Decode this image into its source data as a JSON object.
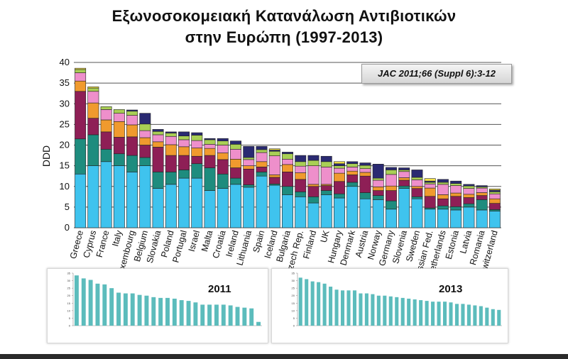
{
  "title_line1": "Εξωνοσοκομειακή Κατανάλωση Αντιβιοτικών",
  "title_line2": "στην Ευρώπη (1997-2013)",
  "reference_box": "JAC 2011;66 (Suppl 6):3-12",
  "colors": {
    "segments": [
      "#3fc3ee",
      "#1e8c7e",
      "#8e1f56",
      "#f09a2e",
      "#ee8fcb",
      "#a9cf55",
      "#2a2a72",
      "#f2e14a"
    ],
    "mini_bar": "#5cbcbc",
    "grid": "#555555"
  },
  "chart_data": [
    {
      "type": "bar",
      "stacked": true,
      "title": "",
      "xlabel": "",
      "ylabel": "DDD",
      "ylim": [
        0,
        40
      ],
      "yticks": [
        0,
        5,
        10,
        15,
        20,
        25,
        30,
        35,
        40
      ],
      "grid": true,
      "categories": [
        "Greece",
        "Cyprus",
        "France",
        "Italy",
        "Luxembourg",
        "Belgium",
        "Slovakia",
        "Poland",
        "Portugal",
        "Israel",
        "Malta",
        "Croatia",
        "Ireland",
        "Lithuania",
        "Spain",
        "Iceland",
        "Bulgaria",
        "Czech Rep.",
        "Finland",
        "UK",
        "Hungary",
        "Denmark",
        "Austria",
        "Norway",
        "Germany",
        "Slovenia",
        "Sweden",
        "Russian Fed.",
        "Netherlands",
        "Estonia",
        "Latvia",
        "Romania",
        "Switzerland"
      ],
      "segments": [
        [
          13.0,
          8.5,
          11.5,
          2.5,
          2.0,
          0.8,
          0,
          0.3
        ],
        [
          15.0,
          7.5,
          4.0,
          3.7,
          2.8,
          0.8,
          0,
          0.3
        ],
        [
          16.0,
          3.0,
          4.2,
          2.9,
          2.5,
          0.7,
          0,
          0
        ],
        [
          15.0,
          2.9,
          4.0,
          3.8,
          2.0,
          0.9,
          0,
          0
        ],
        [
          13.5,
          4.0,
          4.5,
          2.9,
          2.3,
          1.0,
          0.3,
          0
        ],
        [
          15.0,
          2.0,
          3.0,
          1.8,
          1.7,
          1.6,
          2.6,
          0
        ],
        [
          9.5,
          4.0,
          6.0,
          1.3,
          1.7,
          0.8,
          0.5,
          0
        ],
        [
          10.5,
          3.0,
          4.0,
          2.6,
          2.0,
          0.8,
          0.3,
          0
        ],
        [
          12.0,
          2.0,
          3.5,
          2.1,
          1.7,
          0.9,
          1.0,
          0
        ],
        [
          12.0,
          3.5,
          1.8,
          2.0,
          1.8,
          1.3,
          0.6,
          0
        ],
        [
          9.0,
          5.5,
          3.0,
          1.7,
          1.0,
          1.1,
          0.3,
          0
        ],
        [
          9.5,
          3.5,
          3.5,
          1.6,
          1.9,
          1.0,
          0.6,
          0
        ],
        [
          10.5,
          1.5,
          2.5,
          2.1,
          2.4,
          1.2,
          0.8,
          0
        ],
        [
          9.8,
          0.6,
          3.8,
          0.8,
          1.5,
          0.5,
          2.7,
          0
        ],
        [
          12.5,
          1.0,
          1.2,
          1.3,
          2.2,
          0.7,
          0.8,
          0
        ],
        [
          10.3,
          0.3,
          1.6,
          0.6,
          4.6,
          1.1,
          0.3,
          0.3
        ],
        [
          8.0,
          2.0,
          3.5,
          1.8,
          1.3,
          1.3,
          0.4,
          0
        ],
        [
          7.5,
          1.2,
          3.0,
          1.6,
          1.6,
          1.1,
          1.5,
          0
        ],
        [
          6.0,
          1.5,
          2.5,
          0.5,
          4.5,
          1.3,
          1.2,
          0
        ],
        [
          8.0,
          1.0,
          1.2,
          0.3,
          4.2,
          1.3,
          1.3,
          0
        ],
        [
          7.2,
          1.0,
          3.0,
          2.0,
          1.2,
          0.6,
          0.5,
          0.5
        ],
        [
          10.0,
          1.0,
          1.8,
          0.9,
          1.0,
          0.8,
          0.5,
          0
        ],
        [
          7.0,
          1.5,
          4.0,
          0.9,
          0.9,
          0.8,
          0.6,
          0
        ],
        [
          6.8,
          1.0,
          1.2,
          0.9,
          1.6,
          0.5,
          3.4,
          0
        ],
        [
          4.5,
          2.0,
          2.5,
          1.1,
          2.8,
          1.1,
          0.6,
          0
        ],
        [
          9.5,
          0.6,
          1.4,
          0.6,
          1.5,
          0.4,
          0.5,
          0
        ],
        [
          7.0,
          0.5,
          2.0,
          0.5,
          1.6,
          0.6,
          1.8,
          0
        ],
        [
          4.5,
          0.3,
          2.8,
          2.0,
          1.0,
          0.4,
          0.3,
          0.6
        ],
        [
          4.5,
          0.8,
          1.7,
          1.0,
          2.5,
          0.5,
          0.7,
          0
        ],
        [
          4.3,
          0.8,
          2.5,
          0.8,
          1.8,
          0.5,
          0.6,
          0
        ],
        [
          5.0,
          0.8,
          1.5,
          0.8,
          1.4,
          0.6,
          0.4,
          0
        ],
        [
          4.3,
          2.5,
          1.0,
          0.7,
          1.1,
          0.3,
          0.3,
          0
        ],
        [
          4.0,
          0.4,
          1.5,
          1.1,
          1.2,
          0.5,
          0.4,
          0.3
        ]
      ]
    },
    {
      "type": "bar",
      "title": "2011",
      "ylim": [
        0,
        35
      ],
      "values": [
        33.5,
        31.5,
        30.5,
        28,
        27.5,
        25,
        22,
        21.5,
        21.5,
        20.5,
        20,
        19,
        18.5,
        18.5,
        18,
        17,
        16.5,
        15.5,
        14,
        14,
        14,
        14,
        13.5,
        12.5,
        12,
        11.5,
        2.5
      ]
    },
    {
      "type": "bar",
      "title": "2013",
      "ylim": [
        0,
        35
      ],
      "values": [
        32,
        31,
        29.5,
        29,
        28,
        26,
        24,
        23.5,
        23.5,
        23.5,
        21.5,
        21.5,
        21,
        20,
        20,
        19.5,
        19,
        18.5,
        18,
        17.5,
        17,
        16.5,
        16,
        16,
        16,
        15.5,
        14.5,
        14.5,
        14,
        13.5,
        13,
        12,
        11,
        10.5
      ]
    }
  ]
}
